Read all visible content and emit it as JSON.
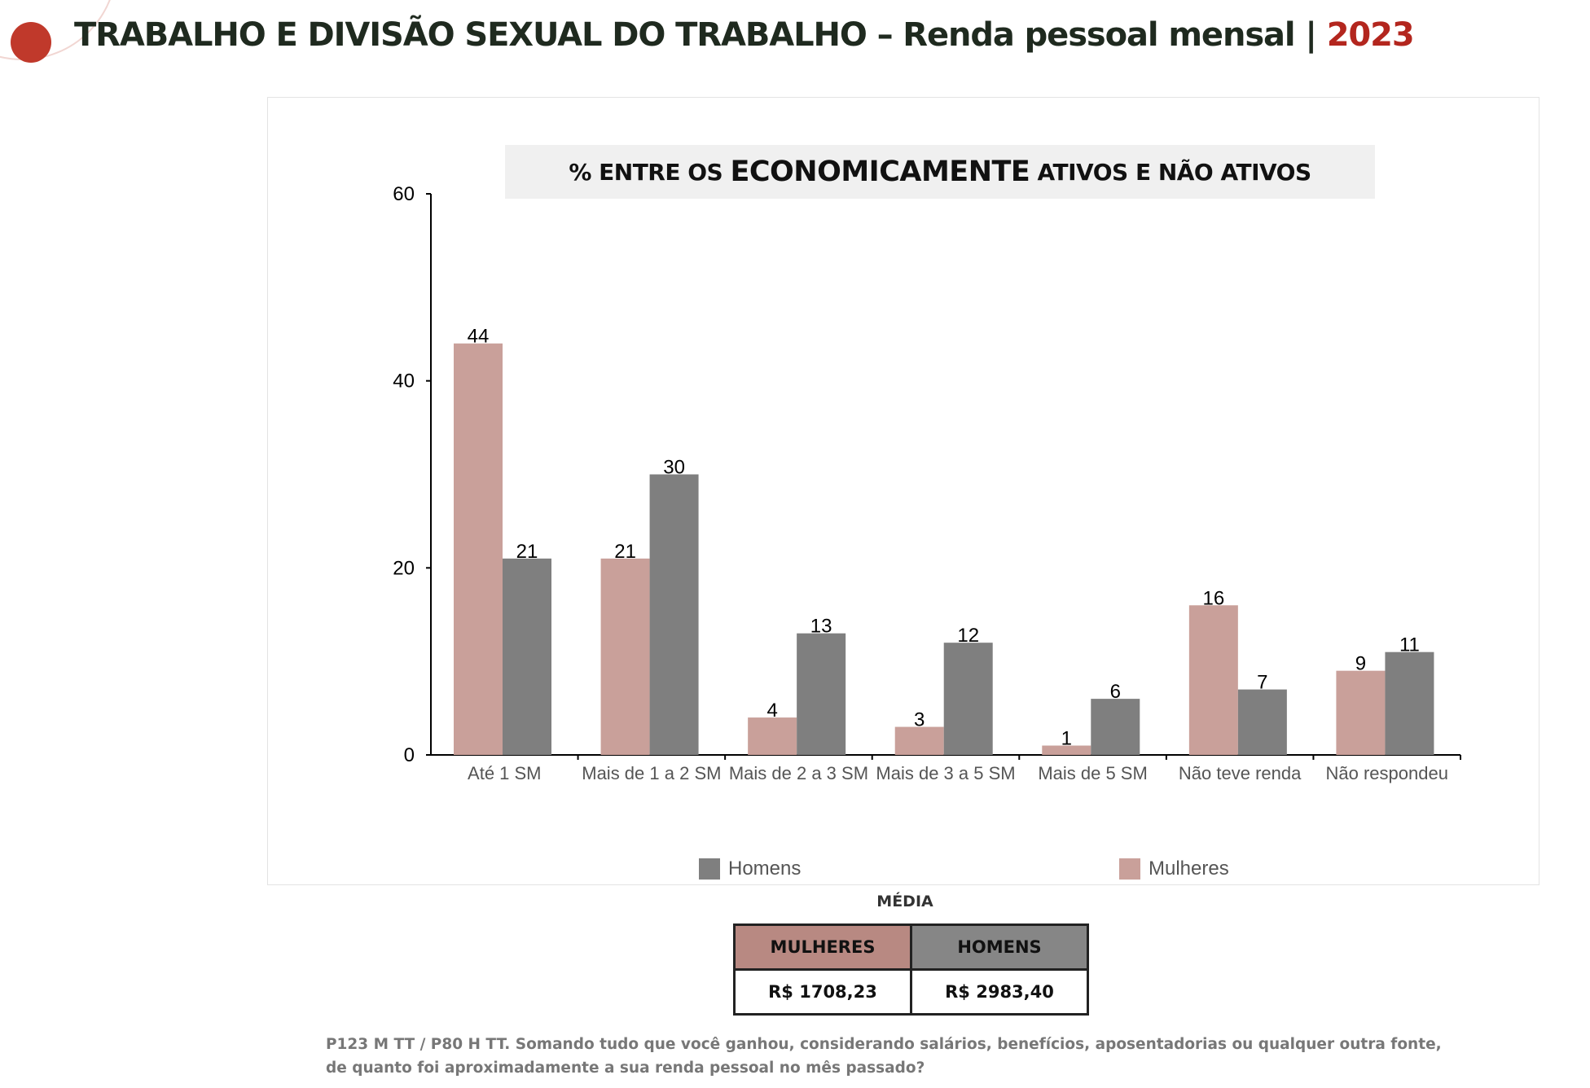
{
  "header": {
    "title_main": "TRABALHO E DIVISÃO SEXUAL DO TRABALHO – Renda pessoal mensal | ",
    "title_year": "2023"
  },
  "chart_header": {
    "part1": "% ENTRE OS ",
    "part2": "ECONOMICAMENTE",
    "part3": " ATIVOS E NÃO ATIVOS"
  },
  "chart_data": {
    "type": "bar",
    "categories": [
      "Até 1 SM",
      "Mais de 1 a 2 SM",
      "Mais de 2 a 3 SM",
      "Mais de 3 a 5 SM",
      "Mais de 5 SM",
      "Não teve renda",
      "Não respondeu"
    ],
    "series": [
      {
        "name": "Mulheres",
        "color": "#c9a09a",
        "values": [
          44,
          21,
          4,
          3,
          1,
          16,
          9
        ]
      },
      {
        "name": "Homens",
        "color": "#7f7f7f",
        "values": [
          21,
          30,
          13,
          12,
          6,
          7,
          11
        ]
      }
    ],
    "ylim": [
      0,
      60
    ],
    "yticks": [
      0,
      20,
      40,
      60
    ],
    "grid": false,
    "legend_position": "bottom"
  },
  "legend": {
    "homens": {
      "label": "Homens",
      "color": "#7f7f7f"
    },
    "mulheres": {
      "label": "Mulheres",
      "color": "#c9a09a"
    }
  },
  "media": {
    "label": "MÉDIA",
    "mulheres_header": "MULHERES",
    "homens_header": "HOMENS",
    "mulheres_value": "R$ 1708,23",
    "homens_value": "R$ 2983,40",
    "mulheres_color": "#b88982",
    "homens_color": "#868686"
  },
  "footnote": {
    "text": "P123 M TT / P80 H TT. Somando tudo que você ganhou, considerando salários, benefícios, aposentadorias ou qualquer outra fonte, de quanto foi aproximadamente a sua renda pessoal no mês passado?"
  }
}
